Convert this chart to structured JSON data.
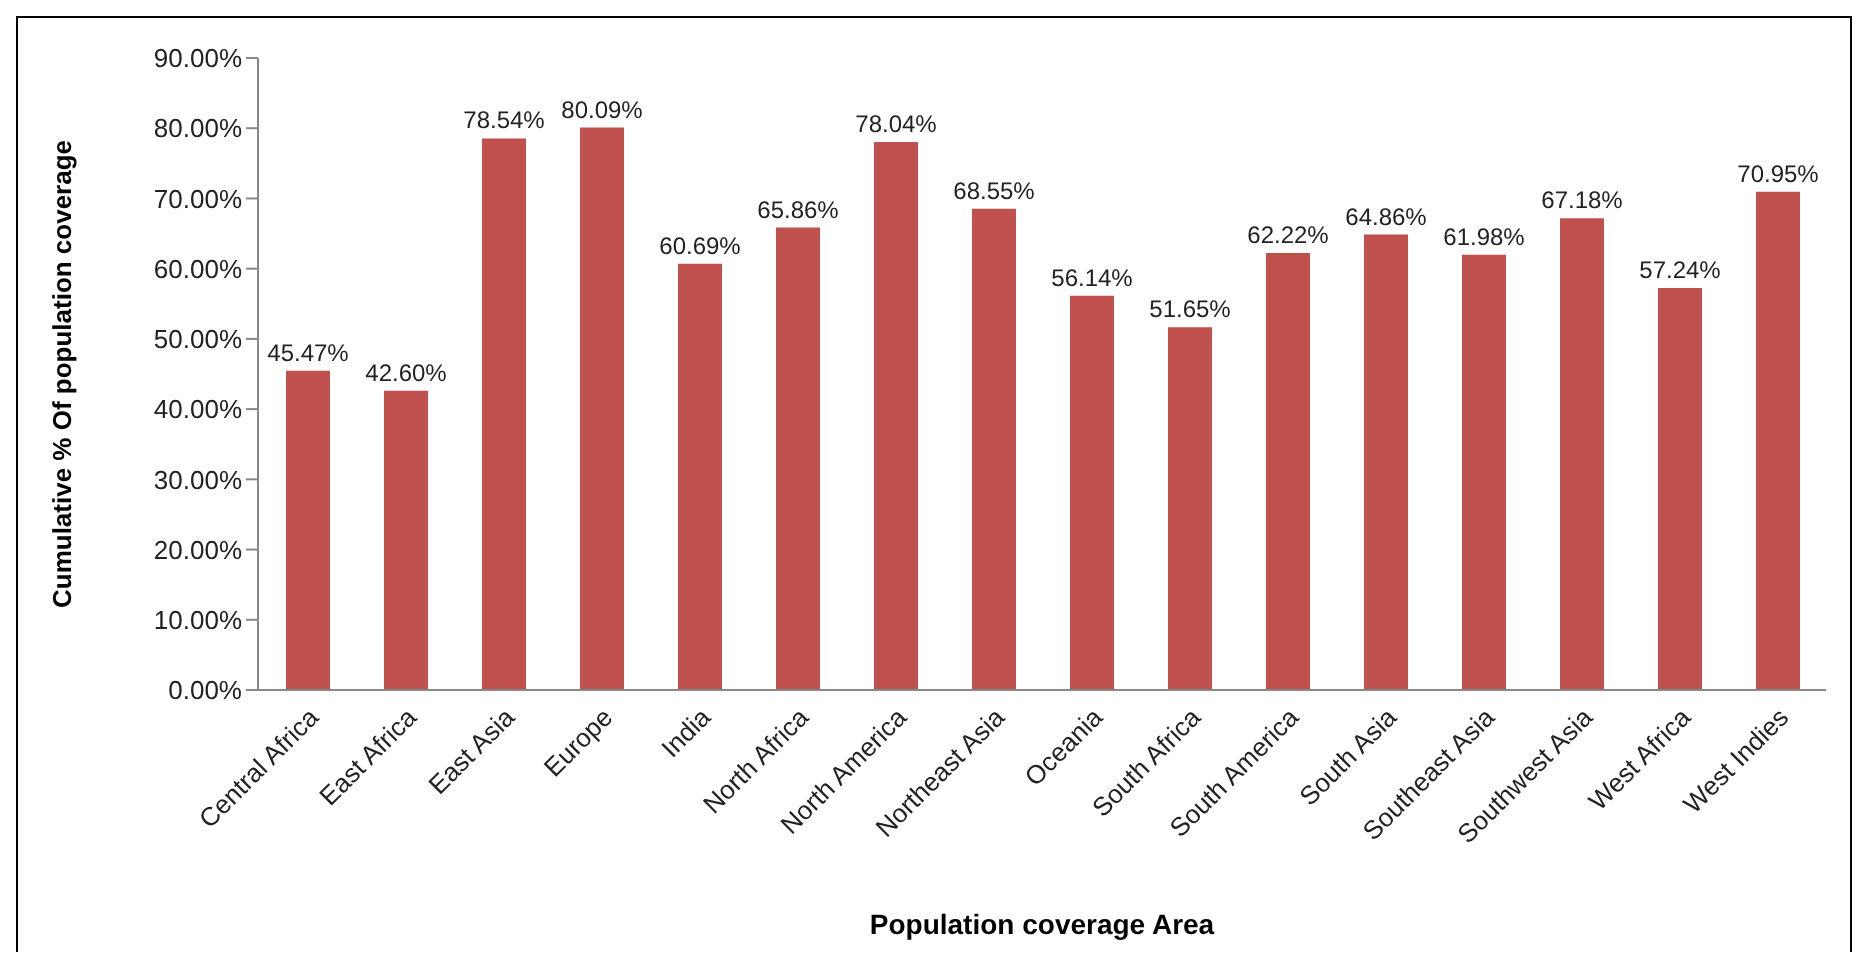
{
  "chart_data": {
    "type": "bar",
    "xlabel": "Population coverage Area",
    "ylabel": "Cumulative % Of population coverage",
    "categories": [
      "Central Africa",
      "East Africa",
      "East Asia",
      "Europe",
      "India",
      "North Africa",
      "North America",
      "Northeast Asia",
      "Oceania",
      "South Africa",
      "South America",
      "South Asia",
      "Southeast Asia",
      "Southwest Asia",
      "West Africa",
      "West Indies"
    ],
    "values": [
      45.47,
      42.6,
      78.54,
      80.09,
      60.69,
      65.86,
      78.04,
      68.55,
      56.14,
      51.65,
      62.22,
      64.86,
      61.98,
      67.18,
      57.24,
      70.95
    ],
    "value_labels": [
      "45.47%",
      "42.60%",
      "78.54%",
      "80.09%",
      "60.69%",
      "65.86%",
      "78.04%",
      "68.55%",
      "56.14%",
      "51.65%",
      "62.22%",
      "64.86%",
      "61.98%",
      "67.18%",
      "57.24%",
      "70.95%"
    ],
    "color": "#c0504d",
    "ylim": [
      0,
      90
    ],
    "yticks": [
      {
        "value": 0,
        "label": "0.00%"
      },
      {
        "value": 10,
        "label": "10.00%"
      },
      {
        "value": 20,
        "label": "20.00%"
      },
      {
        "value": 30,
        "label": "30.00%"
      },
      {
        "value": 40,
        "label": "40.00%"
      },
      {
        "value": 50,
        "label": "50.00%"
      },
      {
        "value": 60,
        "label": "60.00%"
      },
      {
        "value": 70,
        "label": "70.00%"
      },
      {
        "value": 80,
        "label": "80.00%"
      },
      {
        "value": 90,
        "label": "90.00%"
      }
    ],
    "grid": false
  }
}
